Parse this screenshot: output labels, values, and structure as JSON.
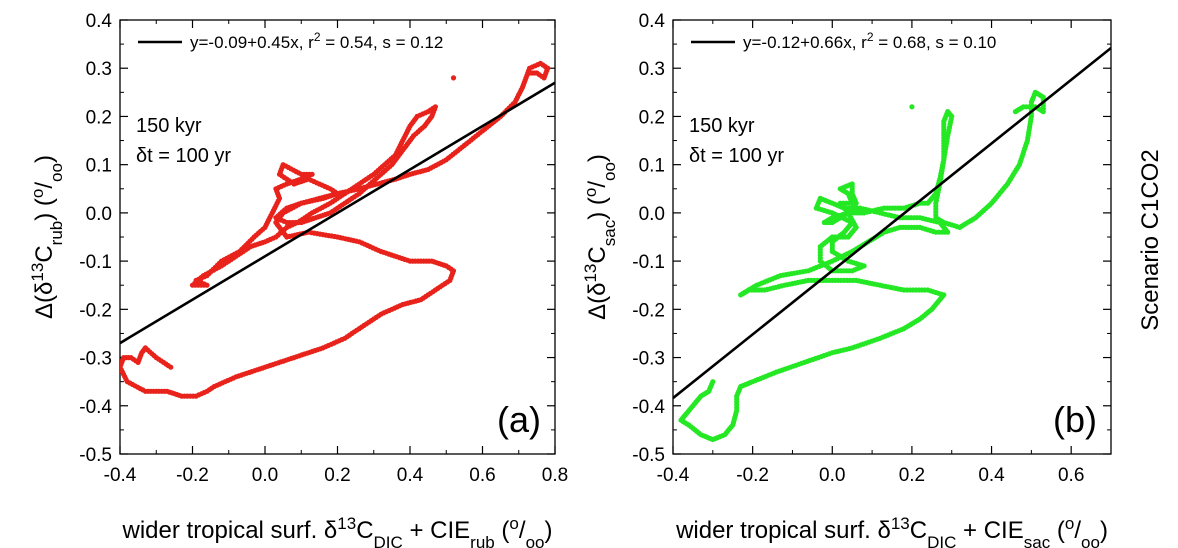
{
  "scenario_label": "Scenario C1CO2",
  "chart_data": [
    {
      "type": "scatter",
      "panel_label": "(a)",
      "legend": "y=-0.09+0.45x, r² = 0.54, s = 0.12",
      "legend_position": "top-left",
      "note_lines": [
        "150 kyr",
        "δt = 100 yr"
      ],
      "xlabel": "wider tropical surf. δ¹³C_DIC + CIE_rub (°/oo)",
      "ylabel": "Δ(δ¹³C_rub) (°/oo)",
      "xlim": [
        -0.4,
        0.8
      ],
      "ylim": [
        -0.5,
        0.4
      ],
      "x_ticks": [
        "-0.4",
        "-0.2",
        "0.0",
        "0.2",
        "0.4",
        "0.6",
        "0.8"
      ],
      "y_ticks": [
        "-0.5",
        "-0.4",
        "-0.3",
        "-0.2",
        "-0.1",
        "0.0",
        "0.1",
        "0.2",
        "0.3",
        "0.4"
      ],
      "grid": false,
      "point_color": "#e8231b",
      "fit": {
        "intercept": -0.09,
        "slope": 0.45,
        "color": "#000000"
      },
      "trajectory": [
        [
          -0.26,
          -0.32
        ],
        [
          -0.3,
          -0.3
        ],
        [
          -0.33,
          -0.28
        ],
        [
          -0.34,
          -0.29
        ],
        [
          -0.35,
          -0.31
        ],
        [
          -0.37,
          -0.3
        ],
        [
          -0.39,
          -0.3
        ],
        [
          -0.4,
          -0.32
        ],
        [
          -0.38,
          -0.35
        ],
        [
          -0.33,
          -0.37
        ],
        [
          -0.27,
          -0.37
        ],
        [
          -0.23,
          -0.38
        ],
        [
          -0.19,
          -0.38
        ],
        [
          -0.16,
          -0.37
        ],
        [
          -0.14,
          -0.36
        ],
        [
          -0.08,
          -0.34
        ],
        [
          0.0,
          -0.32
        ],
        [
          0.08,
          -0.3
        ],
        [
          0.16,
          -0.28
        ],
        [
          0.22,
          -0.26
        ],
        [
          0.26,
          -0.24
        ],
        [
          0.32,
          -0.21
        ],
        [
          0.38,
          -0.19
        ],
        [
          0.43,
          -0.18
        ],
        [
          0.47,
          -0.16
        ],
        [
          0.51,
          -0.14
        ],
        [
          0.52,
          -0.12
        ],
        [
          0.5,
          -0.11
        ],
        [
          0.46,
          -0.1
        ],
        [
          0.4,
          -0.1
        ],
        [
          0.32,
          -0.08
        ],
        [
          0.26,
          -0.06
        ],
        [
          0.2,
          -0.05
        ],
        [
          0.12,
          -0.04
        ],
        [
          0.06,
          -0.05
        ],
        [
          0.03,
          -0.02
        ],
        [
          0.05,
          0.0
        ],
        [
          0.1,
          0.02
        ],
        [
          0.16,
          0.03
        ],
        [
          0.2,
          0.04
        ],
        [
          0.18,
          0.05
        ],
        [
          0.12,
          0.07
        ],
        [
          0.08,
          0.06
        ],
        [
          0.04,
          0.08
        ],
        [
          0.05,
          0.1
        ],
        [
          0.1,
          0.08
        ],
        [
          0.13,
          0.08
        ],
        [
          0.1,
          0.07
        ],
        [
          0.06,
          0.06
        ],
        [
          0.03,
          0.05
        ],
        [
          0.04,
          0.03
        ],
        [
          0.02,
          0.0
        ],
        [
          0.0,
          -0.03
        ],
        [
          -0.03,
          -0.05
        ],
        [
          -0.07,
          -0.08
        ],
        [
          -0.12,
          -0.1
        ],
        [
          -0.16,
          -0.13
        ],
        [
          -0.19,
          -0.14
        ],
        [
          -0.16,
          -0.15
        ],
        [
          -0.2,
          -0.15
        ],
        [
          -0.17,
          -0.13
        ],
        [
          -0.12,
          -0.11
        ],
        [
          -0.08,
          -0.09
        ],
        [
          -0.04,
          -0.07
        ],
        [
          0.0,
          -0.06
        ],
        [
          0.03,
          -0.05
        ],
        [
          0.06,
          -0.03
        ],
        [
          0.09,
          -0.02
        ],
        [
          0.13,
          0.0
        ],
        [
          0.18,
          0.02
        ],
        [
          0.22,
          0.04
        ],
        [
          0.26,
          0.06
        ],
        [
          0.3,
          0.08
        ],
        [
          0.33,
          0.1
        ],
        [
          0.36,
          0.12
        ],
        [
          0.38,
          0.15
        ],
        [
          0.4,
          0.18
        ],
        [
          0.42,
          0.2
        ],
        [
          0.45,
          0.21
        ],
        [
          0.47,
          0.22
        ],
        [
          0.46,
          0.2
        ],
        [
          0.44,
          0.18
        ],
        [
          0.41,
          0.16
        ],
        [
          0.38,
          0.13
        ],
        [
          0.35,
          0.1
        ],
        [
          0.32,
          0.08
        ],
        [
          0.29,
          0.06
        ],
        [
          0.26,
          0.04
        ],
        [
          0.22,
          0.02
        ],
        [
          0.18,
          0.0
        ],
        [
          0.14,
          -0.01
        ],
        [
          0.1,
          -0.02
        ],
        [
          0.06,
          -0.02
        ],
        [
          0.03,
          -0.01
        ],
        [
          0.06,
          0.01
        ],
        [
          0.1,
          0.02
        ],
        [
          0.15,
          0.03
        ],
        [
          0.2,
          0.04
        ],
        [
          0.26,
          0.05
        ],
        [
          0.31,
          0.06
        ],
        [
          0.36,
          0.07
        ],
        [
          0.4,
          0.08
        ],
        [
          0.45,
          0.09
        ],
        [
          0.5,
          0.11
        ],
        [
          0.55,
          0.14
        ],
        [
          0.6,
          0.17
        ],
        [
          0.65,
          0.2
        ],
        [
          0.69,
          0.23
        ],
        [
          0.71,
          0.26
        ],
        [
          0.72,
          0.28
        ],
        [
          0.73,
          0.3
        ],
        [
          0.76,
          0.31
        ],
        [
          0.78,
          0.3
        ],
        [
          0.77,
          0.28
        ],
        [
          0.75,
          0.29
        ],
        [
          0.73,
          0.29
        ]
      ],
      "outliers": [
        [
          0.52,
          0.28
        ]
      ]
    },
    {
      "type": "scatter",
      "panel_label": "(b)",
      "legend": "y=-0.12+0.66x, r² = 0.68, s = 0.10",
      "legend_position": "top-left",
      "note_lines": [
        "150 kyr",
        "δt = 100 yr"
      ],
      "xlabel": "wider tropical surf. δ¹³C_DIC + CIE_sac (°/oo)",
      "ylabel": "Δ(δ¹³C_sac) (°/oo)",
      "xlim": [
        -0.4,
        0.7
      ],
      "ylim": [
        -0.5,
        0.4
      ],
      "x_ticks": [
        "-0.4",
        "-0.2",
        "0.0",
        "0.2",
        "0.4",
        "0.6"
      ],
      "y_ticks": [
        "-0.5",
        "-0.4",
        "-0.3",
        "-0.2",
        "-0.1",
        "0.0",
        "0.1",
        "0.2",
        "0.3",
        "0.4"
      ],
      "grid": false,
      "point_color": "#25e825",
      "fit": {
        "intercept": -0.12,
        "slope": 0.66,
        "color": "#000000"
      },
      "trajectory": [
        [
          -0.3,
          -0.35
        ],
        [
          -0.31,
          -0.37
        ],
        [
          -0.33,
          -0.38
        ],
        [
          -0.35,
          -0.4
        ],
        [
          -0.37,
          -0.42
        ],
        [
          -0.38,
          -0.43
        ],
        [
          -0.36,
          -0.44
        ],
        [
          -0.33,
          -0.46
        ],
        [
          -0.3,
          -0.47
        ],
        [
          -0.27,
          -0.46
        ],
        [
          -0.25,
          -0.44
        ],
        [
          -0.24,
          -0.41
        ],
        [
          -0.24,
          -0.38
        ],
        [
          -0.23,
          -0.36
        ],
        [
          -0.2,
          -0.35
        ],
        [
          -0.14,
          -0.33
        ],
        [
          -0.07,
          -0.31
        ],
        [
          0.0,
          -0.29
        ],
        [
          0.05,
          -0.28
        ],
        [
          0.12,
          -0.26
        ],
        [
          0.18,
          -0.24
        ],
        [
          0.22,
          -0.22
        ],
        [
          0.25,
          -0.2
        ],
        [
          0.27,
          -0.18
        ],
        [
          0.28,
          -0.17
        ],
        [
          0.24,
          -0.16
        ],
        [
          0.18,
          -0.16
        ],
        [
          0.12,
          -0.15
        ],
        [
          0.06,
          -0.14
        ],
        [
          0.0,
          -0.14
        ],
        [
          -0.06,
          -0.14
        ],
        [
          -0.12,
          -0.15
        ],
        [
          -0.17,
          -0.16
        ],
        [
          -0.21,
          -0.16
        ],
        [
          -0.23,
          -0.17
        ],
        [
          -0.19,
          -0.15
        ],
        [
          -0.13,
          -0.13
        ],
        [
          -0.06,
          -0.12
        ],
        [
          0.0,
          -0.1
        ],
        [
          0.05,
          -0.08
        ],
        [
          0.09,
          -0.06
        ],
        [
          0.13,
          -0.04
        ],
        [
          0.17,
          -0.03
        ],
        [
          0.22,
          -0.03
        ],
        [
          0.26,
          -0.04
        ],
        [
          0.29,
          -0.04
        ],
        [
          0.27,
          -0.02
        ],
        [
          0.22,
          -0.01
        ],
        [
          0.17,
          -0.01
        ],
        [
          0.12,
          0.0
        ],
        [
          0.07,
          0.01
        ],
        [
          0.03,
          0.01
        ],
        [
          0.0,
          0.02
        ],
        [
          -0.03,
          0.03
        ],
        [
          -0.04,
          0.01
        ],
        [
          0.0,
          0.0
        ],
        [
          0.05,
          -0.02
        ],
        [
          0.03,
          -0.04
        ],
        [
          0.0,
          -0.06
        ],
        [
          0.0,
          -0.08
        ],
        [
          0.04,
          -0.1
        ],
        [
          0.08,
          -0.11
        ],
        [
          0.05,
          -0.12
        ],
        [
          0.0,
          -0.12
        ],
        [
          -0.03,
          -0.1
        ],
        [
          -0.03,
          -0.07
        ],
        [
          0.0,
          -0.05
        ],
        [
          0.04,
          -0.05
        ],
        [
          0.06,
          -0.03
        ],
        [
          0.04,
          0.0
        ],
        [
          0.02,
          0.02
        ],
        [
          0.05,
          0.02
        ],
        [
          0.04,
          0.04
        ],
        [
          0.02,
          0.05
        ],
        [
          0.05,
          0.06
        ],
        [
          0.05,
          0.04
        ],
        [
          0.06,
          0.02
        ],
        [
          0.04,
          0.0
        ],
        [
          0.0,
          -0.02
        ],
        [
          -0.02,
          -0.02
        ],
        [
          0.0,
          -0.01
        ],
        [
          0.04,
          0.0
        ],
        [
          0.08,
          0.0
        ],
        [
          0.13,
          0.01
        ],
        [
          0.18,
          0.01
        ],
        [
          0.22,
          0.02
        ],
        [
          0.24,
          0.02
        ],
        [
          0.26,
          0.04
        ],
        [
          0.27,
          0.07
        ],
        [
          0.28,
          0.11
        ],
        [
          0.28,
          0.15
        ],
        [
          0.28,
          0.19
        ],
        [
          0.29,
          0.21
        ],
        [
          0.3,
          0.2
        ],
        [
          0.29,
          0.16
        ],
        [
          0.28,
          0.11
        ],
        [
          0.27,
          0.06
        ],
        [
          0.26,
          0.02
        ],
        [
          0.26,
          -0.01
        ],
        [
          0.28,
          -0.02
        ],
        [
          0.32,
          -0.03
        ],
        [
          0.36,
          -0.01
        ],
        [
          0.4,
          0.02
        ],
        [
          0.44,
          0.06
        ],
        [
          0.47,
          0.1
        ],
        [
          0.49,
          0.15
        ],
        [
          0.5,
          0.2
        ],
        [
          0.5,
          0.23
        ],
        [
          0.51,
          0.25
        ],
        [
          0.53,
          0.24
        ],
        [
          0.53,
          0.21
        ],
        [
          0.51,
          0.22
        ],
        [
          0.48,
          0.22
        ],
        [
          0.46,
          0.21
        ]
      ],
      "outliers": [
        [
          0.2,
          0.22
        ]
      ]
    }
  ]
}
